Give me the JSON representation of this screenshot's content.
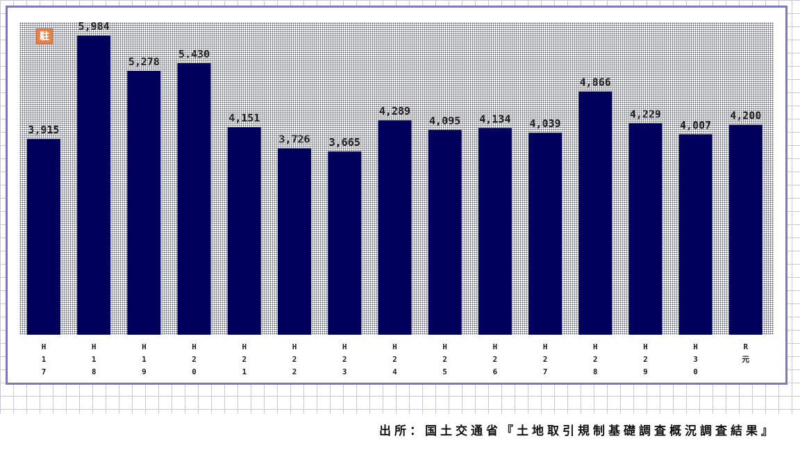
{
  "chart_data": {
    "type": "bar",
    "title": "",
    "xlabel": "",
    "ylabel": "",
    "categories": [
      "H17",
      "H18",
      "H19",
      "H20",
      "H21",
      "H22",
      "H23",
      "H24",
      "H25",
      "H26",
      "H27",
      "H28",
      "H29",
      "H30",
      "R元"
    ],
    "tick_labels": [
      [
        "H",
        "1",
        "7"
      ],
      [
        "H",
        "1",
        "8"
      ],
      [
        "H",
        "1",
        "9"
      ],
      [
        "H",
        "2",
        "0"
      ],
      [
        "H",
        "2",
        "1"
      ],
      [
        "H",
        "2",
        "2"
      ],
      [
        "H",
        "2",
        "3"
      ],
      [
        "H",
        "2",
        "4"
      ],
      [
        "H",
        "2",
        "5"
      ],
      [
        "H",
        "2",
        "6"
      ],
      [
        "H",
        "2",
        "7"
      ],
      [
        "H",
        "2",
        "8"
      ],
      [
        "H",
        "2",
        "9"
      ],
      [
        "H",
        "3",
        "0"
      ],
      [
        "R",
        "元"
      ]
    ],
    "values": [
      3915,
      5984,
      5278,
      5430,
      4151,
      3726,
      3665,
      4289,
      4095,
      4134,
      4039,
      4866,
      4229,
      4007,
      4200
    ],
    "value_labels": [
      "3,915",
      "5,984",
      "5,278",
      "5.430",
      "4,151",
      "3,726",
      "3,665",
      "4,289",
      "4,095",
      "4,134",
      "4,039",
      "4,866",
      "4,229",
      "4,007",
      "4,200"
    ],
    "ylim": [
      0,
      6250
    ],
    "grid": false,
    "bar_color": "#00005c",
    "legend_badge": "駐"
  },
  "source_note": "出所：国土交通省『土地取引規制基礎調査概況調査結果』"
}
